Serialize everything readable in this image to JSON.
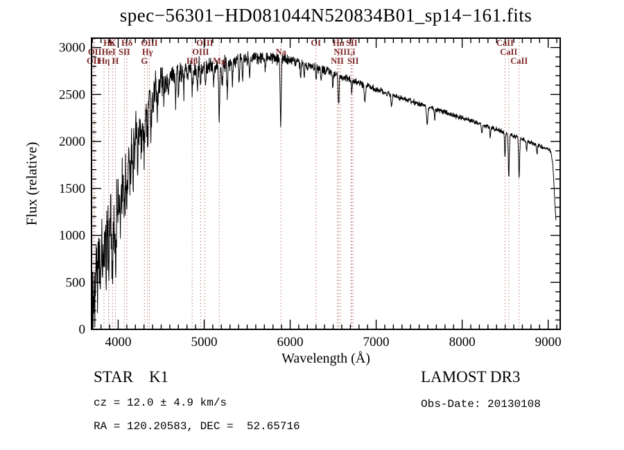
{
  "chart_data": {
    "type": "line",
    "title": "spec−56301−HD081044N520834B01_sp14−161.fits",
    "xlabel": "Wavelength (Å)",
    "ylabel": "Flux (relative)",
    "xlim": [
      3690,
      9140
    ],
    "ylim": [
      0,
      3100
    ],
    "xticks": [
      4000,
      5000,
      6000,
      7000,
      8000,
      9000
    ],
    "yticks": [
      0,
      500,
      1000,
      1500,
      2000,
      2500,
      3000
    ],
    "x_minor_step": 100,
    "y_minor_step": 100,
    "line_color": "#000000",
    "marker_color": "#b87470",
    "marker_label_color": "#7d2626",
    "continuum": [
      [
        3690,
        300
      ],
      [
        3720,
        520
      ],
      [
        3750,
        700
      ],
      [
        3780,
        850
      ],
      [
        3810,
        950
      ],
      [
        3850,
        1020
      ],
      [
        3900,
        1080
      ],
      [
        3950,
        1180
      ],
      [
        4000,
        1350
      ],
      [
        4050,
        1520
      ],
      [
        4100,
        1700
      ],
      [
        4150,
        1860
      ],
      [
        4200,
        2020
      ],
      [
        4250,
        2160
      ],
      [
        4300,
        2300
      ],
      [
        4350,
        2430
      ],
      [
        4400,
        2530
      ],
      [
        4450,
        2600
      ],
      [
        4500,
        2650
      ],
      [
        4600,
        2700
      ],
      [
        4700,
        2730
      ],
      [
        4800,
        2760
      ],
      [
        4900,
        2775
      ],
      [
        5000,
        2790
      ],
      [
        5100,
        2800
      ],
      [
        5200,
        2815
      ],
      [
        5300,
        2840
      ],
      [
        5400,
        2865
      ],
      [
        5500,
        2885
      ],
      [
        5600,
        2900
      ],
      [
        5700,
        2895
      ],
      [
        5800,
        2885
      ],
      [
        5900,
        2880
      ],
      [
        6000,
        2865
      ],
      [
        6100,
        2845
      ],
      [
        6200,
        2815
      ],
      [
        6300,
        2785
      ],
      [
        6400,
        2760
      ],
      [
        6500,
        2725
      ],
      [
        6600,
        2690
      ],
      [
        6700,
        2655
      ],
      [
        6800,
        2625
      ],
      [
        6900,
        2590
      ],
      [
        7000,
        2555
      ],
      [
        7100,
        2520
      ],
      [
        7200,
        2490
      ],
      [
        7300,
        2460
      ],
      [
        7400,
        2430
      ],
      [
        7500,
        2400
      ],
      [
        7600,
        2370
      ],
      [
        7700,
        2340
      ],
      [
        7800,
        2310
      ],
      [
        7900,
        2280
      ],
      [
        8000,
        2250
      ],
      [
        8100,
        2220
      ],
      [
        8200,
        2190
      ],
      [
        8300,
        2160
      ],
      [
        8400,
        2130
      ],
      [
        8500,
        2095
      ],
      [
        8600,
        2060
      ],
      [
        8700,
        2025
      ],
      [
        8800,
        1990
      ],
      [
        8900,
        1955
      ],
      [
        9000,
        1920
      ],
      [
        9030,
        1900
      ],
      [
        9055,
        1750
      ],
      [
        9075,
        1400
      ],
      [
        9090,
        1150
      ]
    ],
    "noise": [
      [
        3690,
        400
      ],
      [
        3760,
        430
      ],
      [
        3850,
        420
      ],
      [
        3950,
        370
      ],
      [
        4050,
        320
      ],
      [
        4150,
        290
      ],
      [
        4250,
        255
      ],
      [
        4350,
        225
      ],
      [
        4450,
        185
      ],
      [
        4550,
        155
      ],
      [
        4700,
        130
      ],
      [
        4850,
        115
      ],
      [
        5000,
        105
      ],
      [
        5200,
        92
      ],
      [
        5400,
        82
      ],
      [
        5600,
        72
      ],
      [
        5800,
        64
      ],
      [
        6000,
        57
      ],
      [
        6200,
        52
      ],
      [
        6400,
        47
      ],
      [
        6600,
        42
      ],
      [
        6800,
        38
      ],
      [
        7000,
        34
      ],
      [
        7300,
        31
      ],
      [
        7600,
        28
      ],
      [
        8000,
        26
      ],
      [
        8400,
        24
      ],
      [
        8800,
        22
      ],
      [
        9090,
        20
      ]
    ],
    "absorption_lines": [
      [
        3727,
        350,
        6
      ],
      [
        3760,
        300,
        5
      ],
      [
        3798,
        350,
        5
      ],
      [
        3820,
        300,
        5
      ],
      [
        3835,
        380,
        5
      ],
      [
        3860,
        320,
        5
      ],
      [
        3889,
        420,
        6
      ],
      [
        3933,
        520,
        7
      ],
      [
        3968,
        520,
        7
      ],
      [
        4026,
        300,
        5
      ],
      [
        4077,
        350,
        5
      ],
      [
        4102,
        480,
        6
      ],
      [
        4144,
        300,
        5
      ],
      [
        4173,
        280,
        5
      ],
      [
        4226,
        380,
        6
      ],
      [
        4271,
        300,
        5
      ],
      [
        4305,
        430,
        8
      ],
      [
        4341,
        380,
        6
      ],
      [
        4383,
        380,
        6
      ],
      [
        4405,
        300,
        5
      ],
      [
        4455,
        300,
        5
      ],
      [
        4531,
        280,
        5
      ],
      [
        4584,
        250,
        5
      ],
      [
        4668,
        260,
        5
      ],
      [
        4703,
        220,
        5
      ],
      [
        4762,
        200,
        5
      ],
      [
        4861,
        300,
        6
      ],
      [
        4920,
        180,
        5
      ],
      [
        4957,
        180,
        5
      ],
      [
        5015,
        200,
        5
      ],
      [
        5110,
        180,
        5
      ],
      [
        5175,
        520,
        7
      ],
      [
        5210,
        250,
        5
      ],
      [
        5270,
        350,
        6
      ],
      [
        5328,
        260,
        5
      ],
      [
        5406,
        220,
        5
      ],
      [
        5446,
        200,
        5
      ],
      [
        5530,
        180,
        5
      ],
      [
        5711,
        150,
        5
      ],
      [
        5890,
        700,
        6
      ],
      [
        6122,
        150,
        5
      ],
      [
        6162,
        140,
        5
      ],
      [
        6300,
        120,
        5
      ],
      [
        6360,
        110,
        5
      ],
      [
        6495,
        150,
        5
      ],
      [
        6563,
        300,
        6
      ],
      [
        6717,
        120,
        5
      ],
      [
        6870,
        170,
        8
      ],
      [
        7180,
        120,
        7
      ],
      [
        7594,
        180,
        8
      ],
      [
        7680,
        100,
        5
      ],
      [
        8230,
        100,
        6
      ],
      [
        8327,
        110,
        5
      ],
      [
        8498,
        260,
        5
      ],
      [
        8542,
        470,
        6
      ],
      [
        8662,
        430,
        6
      ],
      [
        8750,
        120,
        5
      ],
      [
        8870,
        110,
        5
      ]
    ],
    "line_markers": [
      {
        "label": "Hε",
        "wavelength": 3890,
        "row": 0
      },
      {
        "label": "K",
        "wavelength": 3934,
        "row": 0
      },
      {
        "label": "Hδ",
        "wavelength": 4102,
        "row": 0
      },
      {
        "label": "OIII",
        "wavelength": 4363,
        "row": 0
      },
      {
        "label": "OIII",
        "wavelength": 5007,
        "row": 0
      },
      {
        "label": "OI",
        "wavelength": 6300,
        "row": 0
      },
      {
        "label": "Hα",
        "wavelength": 6563,
        "row": 0
      },
      {
        "label": "SII",
        "wavelength": 6716,
        "row": 0
      },
      {
        "label": "CaII",
        "wavelength": 8498,
        "row": 0
      },
      {
        "label": "OII",
        "wavelength": 3727,
        "row": 1
      },
      {
        "label": "HeI",
        "wavelength": 3889,
        "row": 1
      },
      {
        "label": "SII",
        "wavelength": 4072,
        "row": 1
      },
      {
        "label": "Hγ",
        "wavelength": 4341,
        "row": 1
      },
      {
        "label": "OIII",
        "wavelength": 4959,
        "row": 1
      },
      {
        "label": "Na",
        "wavelength": 5893,
        "row": 1
      },
      {
        "label": "NII",
        "wavelength": 6583,
        "row": 1
      },
      {
        "label": "Li",
        "wavelength": 6708,
        "row": 1
      },
      {
        "label": "CaII",
        "wavelength": 8542,
        "row": 1
      },
      {
        "label": "OII",
        "wavelength": 3712,
        "row": 2
      },
      {
        "label": "Hη",
        "wavelength": 3835,
        "row": 2
      },
      {
        "label": "H",
        "wavelength": 3968,
        "row": 2
      },
      {
        "label": "G",
        "wavelength": 4305,
        "row": 2
      },
      {
        "label": "Hβ",
        "wavelength": 4861,
        "row": 2
      },
      {
        "label": "Mg",
        "wavelength": 5175,
        "row": 2
      },
      {
        "label": "NII",
        "wavelength": 6548,
        "row": 2
      },
      {
        "label": "SII",
        "wavelength": 6731,
        "row": 2
      },
      {
        "label": "CaII",
        "wavelength": 8662,
        "row": 2
      }
    ]
  },
  "annotations": {
    "star_class": "STAR    K1",
    "survey": "LAMOST DR3",
    "cz": "cz = 12.0 ± 4.9 km/s",
    "obs_date": "Obs-Date: 20130108",
    "coords": "RA = 120.20583, DEC =  52.65716"
  }
}
